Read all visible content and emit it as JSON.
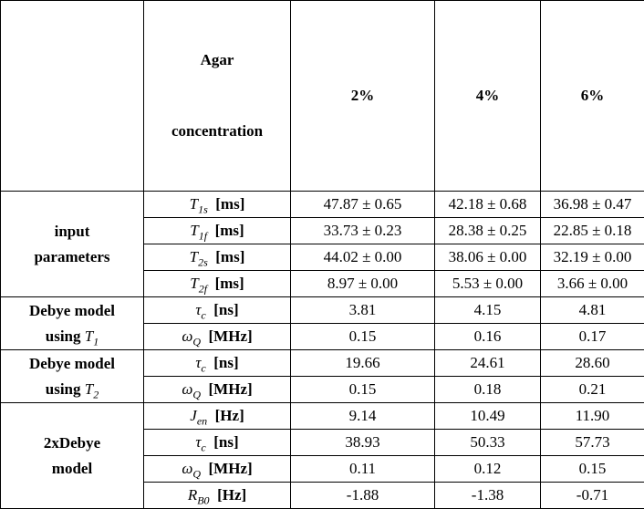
{
  "header": {
    "parameter": [
      "Agar",
      "concentration"
    ],
    "concentrations": [
      "2%",
      "4%",
      "6%"
    ]
  },
  "groups": [
    {
      "label": [
        [
          "input"
        ],
        [
          "parameters"
        ]
      ],
      "rows": [
        {
          "symbol": {
            "math": "T",
            "sub": "1s"
          },
          "unit": "[ms]",
          "values": [
            "47.87 ± 0.65",
            "42.18 ± 0.68",
            "36.98 ± 0.47"
          ]
        },
        {
          "symbol": {
            "math": "T",
            "sub": "1f"
          },
          "unit": "[ms]",
          "values": [
            "33.73 ± 0.23",
            "28.38 ± 0.25",
            "22.85 ± 0.18"
          ]
        },
        {
          "symbol": {
            "math": "T",
            "sub": "2s"
          },
          "unit": "[ms]",
          "values": [
            "44.02 ± 0.00",
            "38.06 ± 0.00",
            "32.19 ± 0.00"
          ]
        },
        {
          "symbol": {
            "math": "T",
            "sub": "2f"
          },
          "unit": "[ms]",
          "values": [
            "8.97 ± 0.00",
            "5.53 ± 0.00",
            "3.66 ± 0.00"
          ]
        }
      ]
    },
    {
      "label": [
        [
          "Debye model"
        ],
        [
          "using ",
          {
            "math": "T",
            "sub": "1"
          }
        ]
      ],
      "rows": [
        {
          "symbol": {
            "math": "τ",
            "sub": "c"
          },
          "unit": "[ns]",
          "values": [
            "3.81",
            "4.15",
            "4.81"
          ]
        },
        {
          "symbol": {
            "math": "ω",
            "sub": "Q"
          },
          "unit": "[MHz]",
          "values": [
            "0.15",
            "0.16",
            "0.17"
          ]
        }
      ]
    },
    {
      "label": [
        [
          "Debye model"
        ],
        [
          "using ",
          {
            "math": "T",
            "sub": "2"
          }
        ]
      ],
      "rows": [
        {
          "symbol": {
            "math": "τ",
            "sub": "c"
          },
          "unit": "[ns]",
          "values": [
            "19.66",
            "24.61",
            "28.60"
          ]
        },
        {
          "symbol": {
            "math": "ω",
            "sub": "Q"
          },
          "unit": "[MHz]",
          "values": [
            "0.15",
            "0.18",
            "0.21"
          ]
        }
      ]
    },
    {
      "label": [
        [
          "2xDebye"
        ],
        [
          "model"
        ]
      ],
      "rows": [
        {
          "symbol": {
            "math": "J",
            "sub": "en"
          },
          "unit": "[Hz]",
          "values": [
            "9.14",
            "10.49",
            "11.90"
          ]
        },
        {
          "symbol": {
            "math": "τ",
            "sub": "c"
          },
          "unit": "[ns]",
          "values": [
            "38.93",
            "50.33",
            "57.73"
          ]
        },
        {
          "symbol": {
            "math": "ω",
            "sub": "Q"
          },
          "unit": "[MHz]",
          "values": [
            "0.11",
            "0.12",
            "0.15"
          ]
        },
        {
          "symbol": {
            "math": "R",
            "sub": "B0"
          },
          "unit": "[Hz]",
          "values": [
            "-1.88",
            "-1.38",
            "-0.71"
          ]
        }
      ]
    }
  ]
}
